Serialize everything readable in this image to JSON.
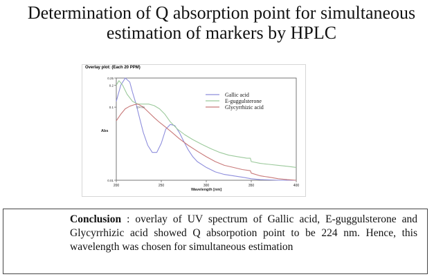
{
  "slide": {
    "title_line1": "Determination of Q absorption point for simultaneous",
    "title_line2": "estimation of markers by HPLC"
  },
  "figure": {
    "caption": "Overlay plot: (Each 20 PPM)"
  },
  "chart_data": {
    "type": "line",
    "xlabel": "Wavelength [nm]",
    "ylabel": "Abs",
    "xlim": [
      200,
      400
    ],
    "ylim": [
      0.01,
      0.25
    ],
    "y_scale": "log",
    "x_ticks": [
      "200",
      "250",
      "300",
      "350",
      "400"
    ],
    "y_ticks": [
      {
        "value": 0.01,
        "label": "0.01"
      },
      {
        "value": 0.1,
        "label": "0.1"
      },
      {
        "value": 0.2,
        "label": "0.2"
      },
      {
        "value": 0.25,
        "label": "0.25"
      }
    ],
    "grid": false,
    "legend_position": "top-right",
    "annotations": [
      {
        "text": "224 nm",
        "x": 224,
        "y": 0.11
      }
    ],
    "series": [
      {
        "name": "Gallic acid",
        "color": "#8d8ddc",
        "x": [
          200,
          205,
          210,
          215,
          218,
          222,
          226,
          230,
          235,
          240,
          245,
          250,
          255,
          260,
          265,
          270,
          275,
          280,
          285,
          290,
          300,
          310,
          320,
          330,
          340,
          350,
          360,
          370,
          380,
          390,
          400
        ],
        "y": [
          0.12,
          0.2,
          0.25,
          0.22,
          0.16,
          0.11,
          0.07,
          0.045,
          0.03,
          0.024,
          0.024,
          0.032,
          0.05,
          0.058,
          0.056,
          0.045,
          0.034,
          0.026,
          0.021,
          0.018,
          0.015,
          0.013,
          0.012,
          0.0115,
          0.011,
          0.0105,
          0.0102,
          0.0101,
          0.01,
          0.01,
          0.01
        ]
      },
      {
        "name": "E-guggulsterone",
        "color": "#9bc99b",
        "x": [
          200,
          203,
          207,
          212,
          218,
          224,
          230,
          236,
          242,
          248,
          254,
          260,
          268,
          276,
          285,
          295,
          305,
          315,
          325,
          335,
          345,
          349,
          350,
          360,
          370,
          380,
          390,
          400
        ],
        "y": [
          0.2,
          0.23,
          0.2,
          0.15,
          0.12,
          0.11,
          0.11,
          0.11,
          0.105,
          0.095,
          0.08,
          0.063,
          0.05,
          0.042,
          0.036,
          0.031,
          0.027,
          0.024,
          0.022,
          0.021,
          0.02,
          0.02,
          0.018,
          0.017,
          0.0165,
          0.016,
          0.0155,
          0.015
        ]
      },
      {
        "name": "Glycyrrhizic acid",
        "color": "#c87878",
        "x": [
          200,
          205,
          210,
          215,
          220,
          224,
          230,
          236,
          242,
          248,
          255,
          262,
          270,
          280,
          290,
          300,
          310,
          320,
          330,
          340,
          349,
          350,
          360,
          370,
          380,
          390,
          400
        ],
        "y": [
          0.065,
          0.08,
          0.095,
          0.103,
          0.108,
          0.11,
          0.1,
          0.085,
          0.072,
          0.062,
          0.053,
          0.045,
          0.037,
          0.03,
          0.025,
          0.021,
          0.018,
          0.016,
          0.015,
          0.014,
          0.0135,
          0.0125,
          0.0115,
          0.011,
          0.0105,
          0.0102,
          0.01
        ]
      }
    ]
  },
  "conclusion": {
    "label": "Conclusion",
    "text": " : overlay of UV spectrum of Gallic acid, E-guggulsterone and  Glycyrrhizic acid showed Q absorpotion point to be 224 nm. Hence, this wavelength was chosen for simultaneous estimation"
  }
}
